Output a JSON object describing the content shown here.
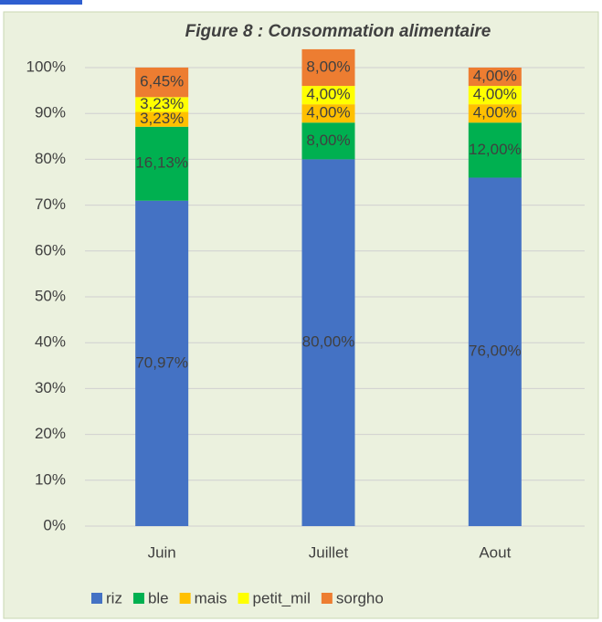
{
  "chart_data": {
    "type": "stacked_bar",
    "title": "Figure 8 : Consommation alimentaire",
    "categories": [
      "Juin",
      "Juillet",
      "Aout"
    ],
    "series": [
      {
        "name": "riz",
        "color": "#4472c4",
        "values": [
          70.97,
          80,
          76
        ],
        "value_labels": [
          "70,97%",
          "80,00%",
          "76,00%"
        ]
      },
      {
        "name": "ble",
        "color": "#00b050",
        "values": [
          16.13,
          8,
          12
        ],
        "value_labels": [
          "16,13%",
          "8,00%",
          "12,00%"
        ]
      },
      {
        "name": "mais",
        "color": "#ffc000",
        "values": [
          3.23,
          4,
          4
        ],
        "value_labels": [
          "3,23%",
          "4,00%",
          "4,00%"
        ]
      },
      {
        "name": "petit_mil",
        "color": "#ffff00",
        "values": [
          3.23,
          4,
          4
        ],
        "value_labels": [
          "3,23%",
          "4,00%",
          "4,00%"
        ]
      },
      {
        "name": "sorgho",
        "color": "#ed7d31",
        "values": [
          6.45,
          8,
          4
        ],
        "value_labels": [
          "6,45%",
          "8,00%",
          "4,00%"
        ]
      }
    ],
    "ylim": [
      0,
      100
    ],
    "yticks": [
      {
        "value": 0,
        "label": "0%"
      },
      {
        "value": 10,
        "label": "10%"
      },
      {
        "value": 20,
        "label": "20%"
      },
      {
        "value": 30,
        "label": "30%"
      },
      {
        "value": 40,
        "label": "40%"
      },
      {
        "value": 50,
        "label": "50%"
      },
      {
        "value": 60,
        "label": "60%"
      },
      {
        "value": 70,
        "label": "70%"
      },
      {
        "value": 80,
        "label": "80%"
      },
      {
        "value": 90,
        "label": "90%"
      },
      {
        "value": 100,
        "label": "100%"
      }
    ],
    "grid": true,
    "legend": "bottom"
  }
}
